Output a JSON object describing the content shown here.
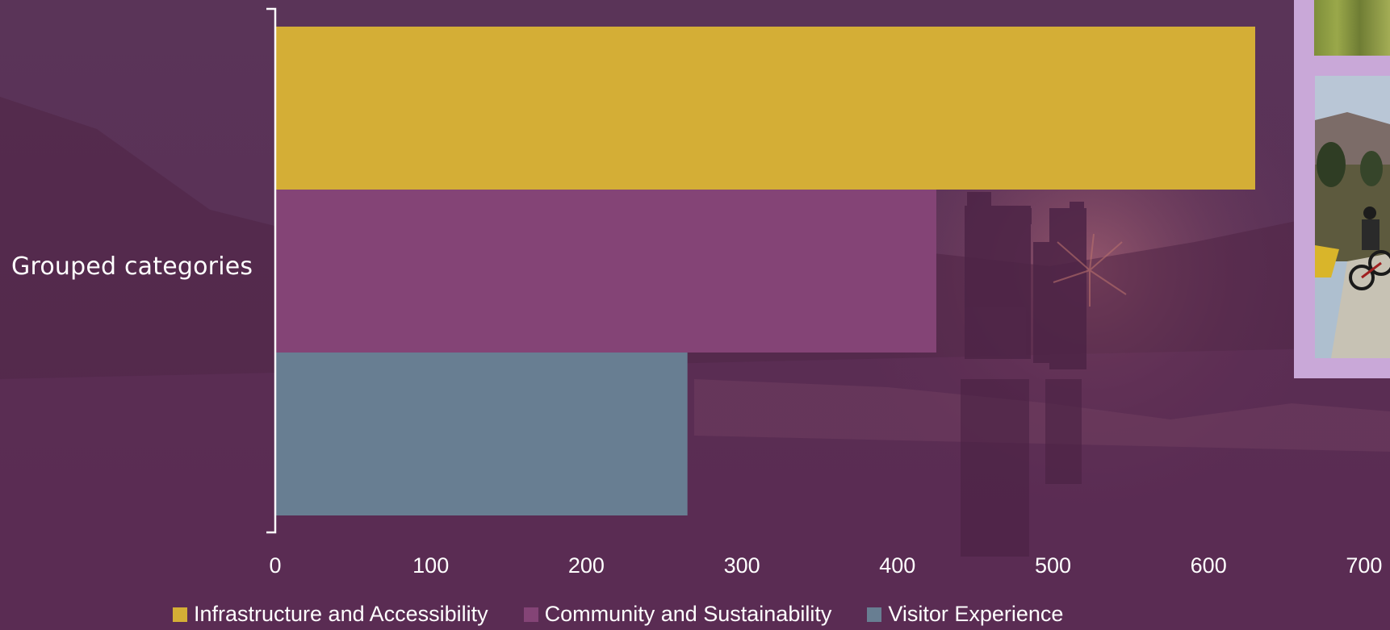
{
  "chart_data": {
    "type": "bar",
    "orientation": "horizontal",
    "categories": [
      "Grouped categories"
    ],
    "series": [
      {
        "name": "Infrastructure and Accessibility",
        "values": [
          630
        ],
        "color": "#d4ae36"
      },
      {
        "name": "Community and Sustainability",
        "values": [
          425
        ],
        "color": "#844476"
      },
      {
        "name": "Visitor Experience",
        "values": [
          265
        ],
        "color": "#687e92"
      }
    ],
    "xlim": [
      0,
      700
    ],
    "xticks": [
      "0",
      "100",
      "200",
      "300",
      "400",
      "500",
      "600",
      "700"
    ],
    "grid": false,
    "legend": "bottom"
  },
  "colors": {
    "background": "#592e55",
    "text": "#ffffff",
    "panel": "#c9a8d8"
  }
}
